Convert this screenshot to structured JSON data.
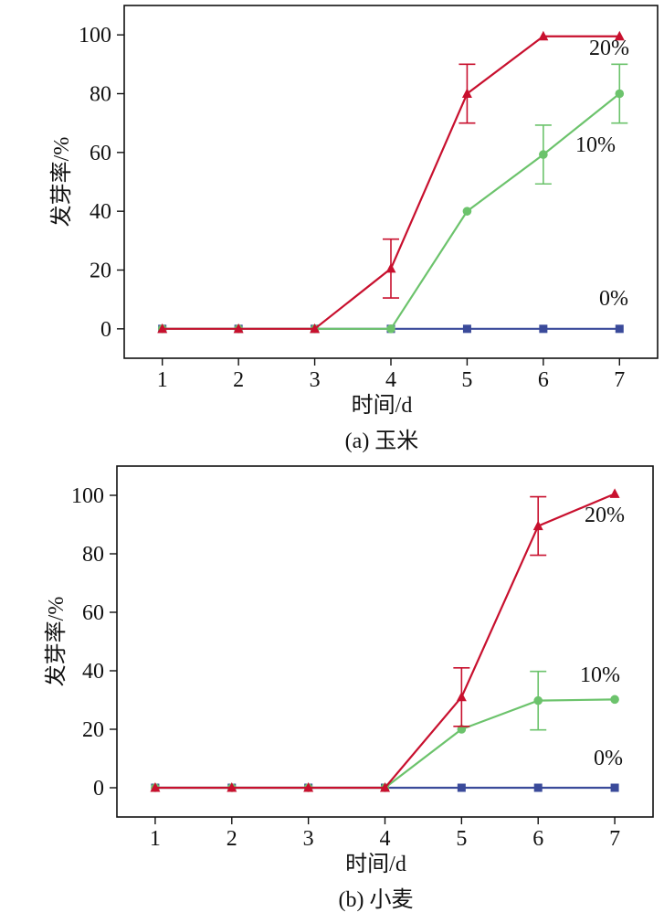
{
  "chart_data": [
    {
      "type": "line",
      "caption": "(a) 玉米",
      "xlabel": "时间/d",
      "ylabel": "发芽率/%",
      "x": [
        1,
        2,
        3,
        4,
        5,
        6,
        7
      ],
      "xlim": [
        0.5,
        7.5
      ],
      "ylim": [
        -10,
        110
      ],
      "yticks": [
        0,
        20,
        40,
        60,
        80,
        100
      ],
      "grid": false,
      "series": [
        {
          "name": "0%",
          "color": "#3a4a9a",
          "marker": "square",
          "values": [
            0,
            0,
            0,
            0,
            0,
            0,
            0
          ],
          "errors": [
            0,
            0,
            0,
            0,
            0,
            0,
            0
          ]
        },
        {
          "name": "10%",
          "color": "#6cc36c",
          "marker": "circle",
          "values": [
            0,
            0,
            0,
            0,
            40,
            59.3,
            80
          ],
          "errors": [
            0,
            0,
            0,
            0,
            0,
            10,
            10
          ]
        },
        {
          "name": "20%",
          "color": "#c8102e",
          "marker": "triangle",
          "values": [
            0,
            0,
            0,
            20.5,
            80,
            99.5,
            99.5
          ],
          "errors": [
            0,
            0,
            0,
            10,
            10,
            0,
            0
          ]
        }
      ]
    },
    {
      "type": "line",
      "caption": "(b) 小麦",
      "xlabel": "时间/d",
      "ylabel": "发芽率/%",
      "x": [
        1,
        2,
        3,
        4,
        5,
        6,
        7
      ],
      "xlim": [
        0.5,
        7.5
      ],
      "ylim": [
        -10,
        110
      ],
      "yticks": [
        0,
        20,
        40,
        60,
        80,
        100
      ],
      "grid": false,
      "series": [
        {
          "name": "0%",
          "color": "#3a4a9a",
          "marker": "square",
          "values": [
            0,
            0,
            0,
            0,
            0,
            0,
            0
          ],
          "errors": [
            0,
            0,
            0,
            0,
            0,
            0,
            0
          ]
        },
        {
          "name": "10%",
          "color": "#6cc36c",
          "marker": "circle",
          "values": [
            0,
            0,
            0,
            0,
            20,
            29.8,
            30.2
          ],
          "errors": [
            0,
            0,
            0,
            0,
            0,
            10,
            0
          ]
        },
        {
          "name": "20%",
          "color": "#c8102e",
          "marker": "triangle",
          "values": [
            0,
            0,
            0,
            0,
            31,
            89.5,
            100.5
          ],
          "errors": [
            0,
            0,
            0,
            0,
            10,
            10,
            0
          ]
        }
      ]
    }
  ]
}
